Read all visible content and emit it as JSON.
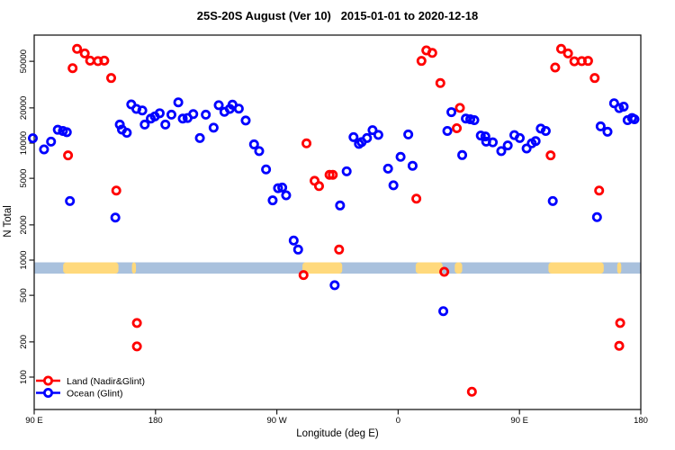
{
  "title": "25S-20S August (Ver 10)   2015-01-01 to 2020-12-18",
  "axes": {
    "y_label": "N Total",
    "x_label": "Longitude (deg E)",
    "x_ticks": [
      {
        "label": "90 E",
        "lon": 90
      },
      {
        "label": "180",
        "lon": 180
      },
      {
        "label": "90 W",
        "lon": 270
      },
      {
        "label": "0",
        "lon": 360
      },
      {
        "label": "90 E",
        "lon": 450
      },
      {
        "label": "180",
        "lon": 540
      }
    ],
    "y_ticks": [
      {
        "label": "100",
        "value": 100
      },
      {
        "label": "200",
        "value": 200
      },
      {
        "label": "500",
        "value": 500
      },
      {
        "label": "1000",
        "value": 1000
      },
      {
        "label": "2000",
        "value": 2000
      },
      {
        "label": "5000",
        "value": 5000
      },
      {
        "label": "10000",
        "value": 10000
      },
      {
        "label": "20000",
        "value": 20000
      },
      {
        "label": "50000",
        "value": 50000
      }
    ]
  },
  "colors": {
    "land_series": "#ff0000",
    "ocean_series": "#0000ff",
    "band_ocean": "#a9c1dd",
    "band_land": "#ffd97c",
    "axis": "#1a1a1a"
  },
  "surface_band": {
    "note": "land/ocean strip drawn across the plot near N=1000",
    "land_segments_lon": [
      [
        111.5,
        152.5
      ],
      [
        162.5,
        165.5
      ],
      [
        289,
        318.5
      ],
      [
        373,
        393
      ],
      [
        402,
        407.5
      ],
      [
        471.5,
        512.5
      ],
      [
        522.5,
        525.5
      ]
    ]
  },
  "legend": [
    {
      "label": "Land (Nadir&Glint)",
      "series": "land"
    },
    {
      "label": "Ocean (Glint)",
      "series": "ocean"
    }
  ],
  "chart_data": {
    "type": "scatter",
    "title": "25S-20S August (Ver 10)   2015-01-01 to 2020-12-18",
    "xlabel": "Longitude (deg E)",
    "ylabel": "N Total",
    "x_range_deg_continuous": [
      90,
      540
    ],
    "y_scale": "log",
    "y_range": [
      70,
      85000
    ],
    "grid": false,
    "legend_position": "bottom-left",
    "series": [
      {
        "name": "Land (Nadir&Glint)",
        "key": "land",
        "color": "#ff0000",
        "marker": "open-circle",
        "points": [
          [
            115.1,
            7850
          ],
          [
            118.5,
            43700
          ],
          [
            121.8,
            63900
          ],
          [
            127.5,
            58400
          ],
          [
            131.5,
            50700
          ],
          [
            137.3,
            50200
          ],
          [
            142.0,
            50700
          ],
          [
            147.1,
            36000
          ],
          [
            150.9,
            3930
          ],
          [
            166.2,
            290
          ],
          [
            166.2,
            183
          ],
          [
            289.8,
            745
          ],
          [
            292.0,
            9950
          ],
          [
            298.0,
            4760
          ],
          [
            301.3,
            4290
          ],
          [
            309.1,
            5360
          ],
          [
            311.5,
            5360
          ],
          [
            316.2,
            1230
          ],
          [
            373.5,
            3350
          ],
          [
            377.3,
            50400
          ],
          [
            380.9,
            62000
          ],
          [
            385.3,
            59000
          ],
          [
            391.3,
            32600
          ],
          [
            394.2,
            795
          ],
          [
            403.5,
            13400
          ],
          [
            405.8,
            20000
          ],
          [
            414.7,
            75
          ],
          [
            473.1,
            7850
          ],
          [
            476.5,
            44300
          ],
          [
            480.9,
            63900
          ],
          [
            486.0,
            58400
          ],
          [
            490.7,
            50000
          ],
          [
            496.2,
            50200
          ],
          [
            500.9,
            50400
          ],
          [
            505.8,
            36000
          ],
          [
            509.1,
            3930
          ],
          [
            524.7,
            290
          ],
          [
            524.0,
            185
          ]
        ]
      },
      {
        "name": "Ocean (Glint)",
        "key": "ocean",
        "color": "#0000ff",
        "marker": "open-circle",
        "points": [
          [
            89.0,
            11000
          ],
          [
            97.3,
            8840
          ],
          [
            102.5,
            10300
          ],
          [
            107.5,
            13000
          ],
          [
            111.3,
            12700
          ],
          [
            114.2,
            12400
          ],
          [
            116.5,
            3200
          ],
          [
            150.2,
            2310
          ],
          [
            153.5,
            14400
          ],
          [
            155.1,
            13050
          ],
          [
            158.7,
            12250
          ],
          [
            162.0,
            21400
          ],
          [
            165.8,
            19600
          ],
          [
            170.2,
            19000
          ],
          [
            172.0,
            14400
          ],
          [
            176.5,
            16200
          ],
          [
            179.5,
            16900
          ],
          [
            183.1,
            18000
          ],
          [
            187.3,
            14400
          ],
          [
            191.8,
            17500
          ],
          [
            196.9,
            22300
          ],
          [
            200.2,
            16200
          ],
          [
            203.8,
            16400
          ],
          [
            208.0,
            17700
          ],
          [
            212.9,
            11050
          ],
          [
            217.3,
            17500
          ],
          [
            223.1,
            13550
          ],
          [
            226.9,
            21100
          ],
          [
            231.1,
            18500
          ],
          [
            235.1,
            19600
          ],
          [
            237.1,
            21300
          ],
          [
            241.8,
            19700
          ],
          [
            246.9,
            15600
          ],
          [
            253.1,
            9750
          ],
          [
            256.9,
            8550
          ],
          [
            262.0,
            5960
          ],
          [
            266.9,
            3240
          ],
          [
            270.9,
            4120
          ],
          [
            274.0,
            4170
          ],
          [
            276.9,
            3580
          ],
          [
            282.5,
            1470
          ],
          [
            285.8,
            1230
          ],
          [
            312.9,
            610
          ],
          [
            316.9,
            2930
          ],
          [
            321.8,
            5740
          ],
          [
            326.9,
            11250
          ],
          [
            330.9,
            9840
          ],
          [
            332.9,
            10200
          ],
          [
            336.9,
            11050
          ],
          [
            341.0,
            12900
          ],
          [
            345.3,
            11750
          ],
          [
            352.5,
            6050
          ],
          [
            356.5,
            4360
          ],
          [
            361.8,
            7630
          ],
          [
            367.5,
            11850
          ],
          [
            370.7,
            6400
          ],
          [
            393.5,
            366
          ],
          [
            396.5,
            12700
          ],
          [
            399.5,
            18400
          ],
          [
            407.5,
            7900
          ],
          [
            410.2,
            16200
          ],
          [
            413.5,
            16000
          ],
          [
            416.5,
            15700
          ],
          [
            421.3,
            11600
          ],
          [
            424.7,
            11400
          ],
          [
            425.3,
            10300
          ],
          [
            430.2,
            10150
          ],
          [
            436.5,
            8550
          ],
          [
            441.3,
            9550
          ],
          [
            446.2,
            11700
          ],
          [
            450.2,
            11050
          ],
          [
            455.3,
            9000
          ],
          [
            459.1,
            9950
          ],
          [
            462.0,
            10400
          ],
          [
            465.8,
            13300
          ],
          [
            469.5,
            12700
          ],
          [
            474.7,
            3200
          ],
          [
            507.5,
            2330
          ],
          [
            510.2,
            13900
          ],
          [
            515.3,
            12500
          ],
          [
            520.2,
            21900
          ],
          [
            524.0,
            19900
          ],
          [
            527.3,
            20500
          ],
          [
            530.2,
            15700
          ],
          [
            533.5,
            16400
          ],
          [
            535.3,
            16000
          ]
        ]
      }
    ]
  }
}
